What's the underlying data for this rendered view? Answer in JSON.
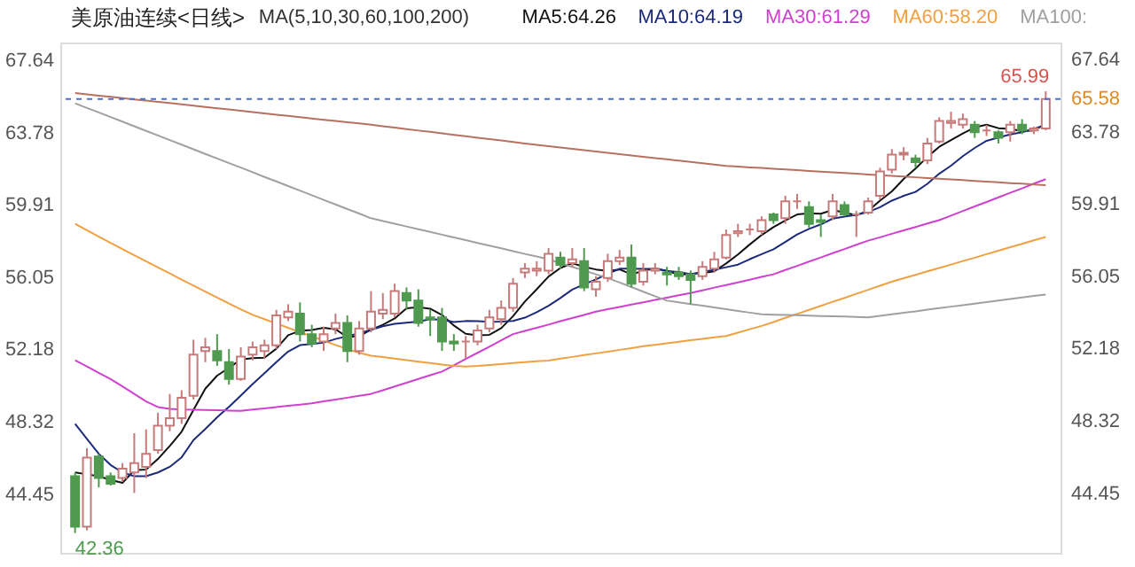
{
  "chart_data": {
    "type": "candlestick",
    "title": "美原油连续<日线>",
    "annotations": [
      "MA(5,10,30,60,100,200)",
      "42.36",
      "65.99"
    ],
    "categories": [
      null,
      null,
      null,
      null,
      null,
      null,
      null,
      null,
      null,
      null,
      null,
      null,
      null,
      null,
      null,
      null,
      null,
      null,
      null,
      null,
      null,
      null,
      null,
      null,
      null,
      null,
      null,
      null,
      null,
      null,
      null,
      null,
      null,
      null,
      null,
      null,
      null,
      null,
      null,
      null,
      null,
      null,
      null,
      null,
      null,
      null,
      null,
      null,
      null,
      null,
      null,
      null,
      null,
      null,
      null,
      null,
      null,
      null,
      null,
      null,
      null,
      null,
      null,
      null,
      null,
      null,
      null,
      null,
      null,
      null,
      null,
      null,
      null,
      null,
      null,
      null,
      null,
      null,
      null,
      null,
      null,
      null,
      null
    ],
    "ohlc": [
      [
        45.4,
        45.6,
        42.36,
        42.7
      ],
      [
        42.7,
        46.9,
        42.5,
        46.4
      ],
      [
        46.45,
        46.6,
        44.8,
        45.3
      ],
      [
        45.4,
        45.6,
        44.9,
        45.0
      ],
      [
        45.3,
        46.1,
        45.1,
        45.8
      ],
      [
        45.6,
        47.7,
        44.5,
        46.1
      ],
      [
        45.9,
        47.9,
        45.3,
        46.6
      ],
      [
        46.8,
        48.8,
        46.6,
        48.1
      ],
      [
        48.1,
        49.8,
        47.8,
        48.5
      ],
      [
        48.5,
        50.0,
        48.2,
        49.6
      ],
      [
        49.7,
        52.7,
        49.5,
        51.9
      ],
      [
        52.1,
        52.8,
        51.5,
        52.3
      ],
      [
        52.1,
        53.0,
        51.3,
        51.6
      ],
      [
        51.5,
        52.2,
        50.3,
        50.6
      ],
      [
        50.6,
        52.3,
        50.5,
        51.8
      ],
      [
        51.9,
        52.6,
        51.6,
        52.3
      ],
      [
        52.1,
        52.7,
        51.7,
        52.4
      ],
      [
        52.4,
        54.3,
        52.2,
        54.0
      ],
      [
        53.9,
        54.6,
        53.7,
        54.2
      ],
      [
        54.1,
        54.7,
        52.6,
        53.0
      ],
      [
        53.0,
        53.5,
        52.3,
        52.5
      ],
      [
        52.6,
        53.4,
        52.1,
        53.0
      ],
      [
        53.3,
        54.1,
        53.0,
        53.6
      ],
      [
        53.6,
        54.0,
        51.5,
        52.1
      ],
      [
        52.1,
        53.7,
        51.9,
        53.3
      ],
      [
        53.3,
        55.3,
        53.1,
        54.2
      ],
      [
        54.1,
        55.2,
        53.8,
        54.3
      ],
      [
        54.1,
        55.7,
        53.9,
        55.3
      ],
      [
        55.2,
        55.5,
        54.3,
        54.8
      ],
      [
        54.8,
        55.4,
        53.4,
        53.6
      ],
      [
        53.9,
        54.3,
        52.9,
        53.8
      ],
      [
        53.9,
        54.4,
        52.1,
        52.6
      ],
      [
        52.6,
        53.0,
        52.1,
        52.5
      ],
      [
        52.6,
        52.9,
        51.7,
        52.6
      ],
      [
        52.6,
        53.5,
        52.4,
        53.2
      ],
      [
        53.3,
        54.3,
        53.1,
        53.9
      ],
      [
        53.8,
        54.8,
        53.5,
        54.4
      ],
      [
        54.4,
        56.0,
        54.2,
        55.7
      ],
      [
        56.3,
        56.8,
        56.0,
        56.5
      ],
      [
        56.4,
        56.9,
        56.1,
        56.5
      ],
      [
        56.4,
        57.6,
        56.2,
        57.3
      ],
      [
        57.1,
        57.4,
        56.5,
        56.7
      ],
      [
        56.8,
        57.6,
        56.6,
        57.0
      ],
      [
        56.9,
        57.6,
        55.3,
        55.5
      ],
      [
        55.4,
        56.1,
        55.0,
        55.8
      ],
      [
        56.0,
        57.3,
        55.8,
        56.9
      ],
      [
        56.9,
        57.5,
        56.7,
        57.1
      ],
      [
        57.1,
        57.8,
        55.5,
        55.7
      ],
      [
        55.8,
        56.8,
        55.6,
        56.4
      ],
      [
        56.4,
        56.8,
        56.2,
        56.5
      ],
      [
        56.3,
        56.6,
        55.6,
        56.2
      ],
      [
        56.3,
        56.6,
        55.9,
        56.1
      ],
      [
        56.2,
        56.4,
        54.6,
        55.9
      ],
      [
        56.1,
        56.9,
        55.9,
        56.6
      ],
      [
        56.5,
        57.4,
        56.3,
        57.0
      ],
      [
        57.1,
        58.6,
        57.0,
        58.3
      ],
      [
        58.4,
        58.9,
        58.2,
        58.5
      ],
      [
        58.6,
        58.9,
        58.3,
        58.6
      ],
      [
        58.5,
        59.3,
        58.3,
        59.1
      ],
      [
        59.4,
        59.5,
        58.9,
        59.1
      ],
      [
        59.2,
        60.4,
        58.9,
        60.1
      ],
      [
        60.1,
        60.5,
        59.7,
        60.1
      ],
      [
        59.8,
        60.1,
        58.7,
        58.9
      ],
      [
        59.1,
        59.4,
        58.2,
        59.0
      ],
      [
        59.3,
        60.5,
        59.1,
        60.1
      ],
      [
        59.9,
        60.1,
        59.3,
        59.4
      ],
      [
        59.4,
        59.6,
        58.2,
        59.4
      ],
      [
        59.5,
        60.3,
        59.4,
        60.1
      ],
      [
        60.4,
        61.9,
        60.2,
        61.7
      ],
      [
        61.8,
        62.9,
        61.6,
        62.6
      ],
      [
        62.6,
        63.0,
        62.3,
        62.7
      ],
      [
        62.4,
        62.6,
        61.9,
        62.2
      ],
      [
        62.3,
        63.5,
        62.1,
        63.2
      ],
      [
        63.3,
        64.6,
        63.2,
        64.4
      ],
      [
        64.3,
        64.9,
        64.0,
        64.4
      ],
      [
        64.2,
        64.8,
        64.0,
        64.5
      ],
      [
        64.2,
        64.4,
        63.5,
        63.8
      ],
      [
        63.9,
        64.2,
        63.6,
        63.9
      ],
      [
        63.8,
        63.9,
        63.2,
        63.5
      ],
      [
        63.8,
        64.4,
        63.3,
        64.2
      ],
      [
        64.2,
        64.5,
        63.7,
        63.9
      ],
      [
        63.9,
        64.1,
        63.7,
        64.0
      ],
      [
        64.0,
        65.99,
        63.9,
        65.58
      ]
    ],
    "series": [
      {
        "name": "MA5:64.26",
        "type": "line",
        "color": "#111111",
        "values": [
          45.6,
          45.5,
          45.4,
          45.2,
          45.04,
          45.72,
          45.76,
          46.32,
          47.02,
          47.78,
          48.94,
          50.08,
          50.78,
          51.2,
          51.64,
          51.72,
          51.74,
          52.22,
          52.94,
          53.18,
          53.22,
          53.34,
          53.26,
          52.84,
          52.9,
          53.24,
          53.5,
          53.84,
          54.38,
          54.44,
          54.36,
          54.02,
          53.46,
          53.02,
          52.94,
          52.96,
          53.32,
          53.96,
          54.74,
          55.4,
          56.08,
          56.54,
          56.8,
          56.6,
          56.46,
          56.38,
          56.46,
          56.2,
          56.38,
          56.52,
          56.38,
          56.18,
          56.22,
          56.26,
          56.36,
          56.78,
          57.26,
          57.8,
          58.3,
          58.72,
          59.08,
          59.4,
          59.46,
          59.44,
          59.64,
          59.5,
          59.36,
          59.6,
          60.14,
          60.64,
          61.3,
          61.86,
          62.48,
          63.02,
          63.38,
          63.74,
          64.06,
          64.2,
          64.02,
          63.98,
          63.86,
          63.9,
          64.24
        ]
      },
      {
        "name": "MA10:64.19",
        "type": "line",
        "color": "#1c2a7c",
        "values": [
          48.2,
          47.4,
          46.6,
          46.0,
          45.6,
          45.4,
          45.4,
          45.6,
          45.9,
          46.41,
          47.33,
          47.92,
          48.55,
          49.11,
          49.71,
          50.33,
          50.91,
          51.5,
          52.07,
          52.41,
          52.47,
          52.54,
          52.74,
          52.89,
          53.04,
          53.23,
          53.42,
          53.55,
          53.61,
          53.67,
          53.8,
          53.76,
          53.65,
          53.7,
          53.69,
          53.66,
          53.67,
          53.71,
          53.88,
          54.17,
          54.52,
          54.93,
          55.38,
          55.67,
          55.93,
          56.23,
          56.5,
          56.5,
          56.49,
          56.49,
          56.38,
          56.32,
          56.21,
          56.32,
          56.44,
          56.58,
          56.72,
          57.01,
          57.28,
          57.54,
          57.93,
          58.33,
          58.63,
          58.87,
          59.18,
          59.29,
          59.38,
          59.53,
          59.79,
          60.14,
          60.4,
          60.61,
          61.04,
          61.58,
          62.01,
          62.52,
          62.96,
          63.34,
          63.52,
          63.68,
          63.8,
          63.98,
          64.19
        ]
      },
      {
        "name": "MA30:61.29",
        "type": "line",
        "color": "#d040d0",
        "values": [
          51.6,
          51.27,
          50.93,
          50.6,
          50.2,
          49.8,
          49.4,
          49.1,
          49.0,
          48.97,
          48.95,
          48.94,
          48.93,
          48.91,
          48.9,
          48.97,
          49.03,
          49.1,
          49.17,
          49.23,
          49.3,
          49.4,
          49.5,
          49.6,
          49.7,
          49.8,
          50.0,
          50.2,
          50.4,
          50.6,
          50.8,
          51.0,
          51.33,
          51.67,
          52.0,
          52.33,
          52.67,
          53.0,
          53.17,
          53.34,
          53.51,
          53.69,
          53.86,
          54.03,
          54.2,
          54.33,
          54.45,
          54.58,
          54.7,
          54.83,
          54.95,
          55.08,
          55.2,
          55.34,
          55.49,
          55.63,
          55.77,
          55.91,
          56.06,
          56.2,
          56.43,
          56.65,
          56.88,
          57.1,
          57.33,
          57.55,
          57.78,
          58.0,
          58.18,
          58.37,
          58.55,
          58.73,
          58.92,
          59.1,
          59.34,
          59.59,
          59.83,
          60.07,
          60.32,
          60.56,
          60.8,
          61.05,
          61.29
        ]
      },
      {
        "name": "MA60:58.20",
        "type": "line",
        "color": "#f0a040",
        "values": [
          58.9,
          58.56,
          58.22,
          57.88,
          57.55,
          57.22,
          56.9,
          56.57,
          56.25,
          55.92,
          55.6,
          55.28,
          54.96,
          54.64,
          54.33,
          54.03,
          53.8,
          53.57,
          53.34,
          53.11,
          52.88,
          52.65,
          52.42,
          52.2,
          52.0,
          51.85,
          51.77,
          51.69,
          51.61,
          51.53,
          51.45,
          51.37,
          51.3,
          51.27,
          51.3,
          51.35,
          51.4,
          51.45,
          51.5,
          51.55,
          51.59,
          51.69,
          51.78,
          51.88,
          51.97,
          52.06,
          52.16,
          52.25,
          52.35,
          52.43,
          52.51,
          52.59,
          52.67,
          52.75,
          52.83,
          52.9,
          53.08,
          53.26,
          53.44,
          53.65,
          53.87,
          54.08,
          54.3,
          54.51,
          54.73,
          54.94,
          55.16,
          55.37,
          55.59,
          55.8,
          55.99,
          56.17,
          56.36,
          56.54,
          56.72,
          56.91,
          57.09,
          57.28,
          57.46,
          57.65,
          57.83,
          58.02,
          58.2
        ]
      },
      {
        "name": "MA100:",
        "type": "line",
        "color": "#a0a0a0",
        "values": [
          65.35,
          65.1,
          64.86,
          64.61,
          64.37,
          64.12,
          63.87,
          63.63,
          63.38,
          63.14,
          62.89,
          62.64,
          62.4,
          62.15,
          61.91,
          61.66,
          61.41,
          61.17,
          60.92,
          60.68,
          60.43,
          60.18,
          59.94,
          59.69,
          59.45,
          59.2,
          59.05,
          58.91,
          58.76,
          58.61,
          58.47,
          58.32,
          58.17,
          58.03,
          57.88,
          57.73,
          57.59,
          57.44,
          57.29,
          57.15,
          57.0,
          56.8,
          56.6,
          56.4,
          56.2,
          56.0,
          55.76,
          55.52,
          55.27,
          55.03,
          54.79,
          54.7,
          54.61,
          54.52,
          54.43,
          54.33,
          54.24,
          54.15,
          54.06,
          54.04,
          54.03,
          54.01,
          53.99,
          53.97,
          53.96,
          53.94,
          53.92,
          53.9,
          53.98,
          54.06,
          54.14,
          54.22,
          54.31,
          54.39,
          54.47,
          54.55,
          54.63,
          54.71,
          54.8,
          54.88,
          54.96,
          55.04,
          55.12
        ]
      },
      {
        "type": "line",
        "color": "#b87060",
        "values": [
          65.9,
          65.83,
          65.76,
          65.7,
          65.63,
          65.56,
          65.49,
          65.42,
          65.36,
          65.29,
          65.22,
          65.15,
          65.08,
          65.02,
          64.95,
          64.88,
          64.81,
          64.74,
          64.68,
          64.61,
          64.54,
          64.47,
          64.4,
          64.34,
          64.27,
          64.2,
          64.12,
          64.05,
          63.97,
          63.89,
          63.82,
          63.74,
          63.66,
          63.59,
          63.51,
          63.43,
          63.36,
          63.28,
          63.2,
          63.13,
          63.05,
          62.98,
          62.91,
          62.84,
          62.77,
          62.7,
          62.63,
          62.56,
          62.49,
          62.42,
          62.35,
          62.28,
          62.21,
          62.14,
          62.07,
          62.0,
          61.96,
          61.92,
          61.89,
          61.85,
          61.81,
          61.77,
          61.73,
          61.69,
          61.66,
          61.62,
          61.58,
          61.54,
          61.5,
          61.47,
          61.43,
          61.39,
          61.35,
          61.31,
          61.28,
          61.24,
          61.2,
          61.16,
          61.12,
          61.08,
          61.05,
          61.01,
          60.97
        ]
      }
    ],
    "ylim": [
      41.3,
      68.6
    ],
    "yticks": [
      44.45,
      48.32,
      52.18,
      56.05,
      59.91,
      63.78,
      67.64
    ],
    "y2lim": [
      41.3,
      68.6
    ],
    "y2ticks": [
      44.45,
      48.32,
      52.18,
      56.05,
      59.91,
      63.78,
      67.64
    ],
    "ref_lines": [
      {
        "axis": "y",
        "value": 65.58,
        "label": "65.58",
        "color": "#4a6fd0",
        "line_style": "dashed"
      }
    ],
    "tick_labels": "y",
    "legend": "top right",
    "grid": false
  }
}
